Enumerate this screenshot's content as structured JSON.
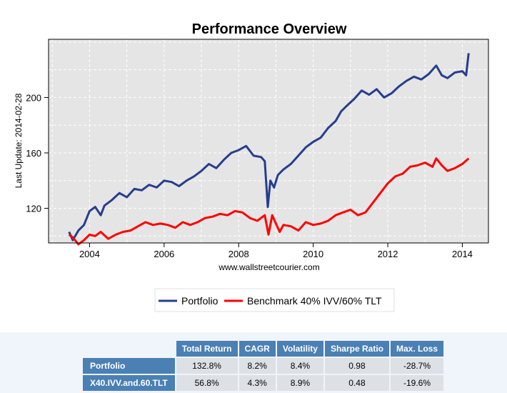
{
  "chart_data": {
    "type": "line",
    "title": "Performance Overview",
    "ylabel": "Last Update: 2014-02-28",
    "xlabel": "www.wallstreetcourier.com",
    "xlim": [
      2002.9,
      2014.7
    ],
    "ylim": [
      95,
      242
    ],
    "x_ticks": [
      2004,
      2006,
      2008,
      2010,
      2012,
      2014
    ],
    "y_ticks": [
      120,
      160,
      200
    ],
    "grid": true,
    "legend_position": "bottom",
    "series": [
      {
        "name": "Portfolio",
        "color": "#253e8d",
        "x": [
          2003.45,
          2003.55,
          2003.7,
          2003.85,
          2004.0,
          2004.15,
          2004.3,
          2004.4,
          2004.6,
          2004.8,
          2005.0,
          2005.2,
          2005.4,
          2005.6,
          2005.8,
          2006.0,
          2006.2,
          2006.4,
          2006.6,
          2006.8,
          2007.0,
          2007.2,
          2007.4,
          2007.6,
          2007.8,
          2008.0,
          2008.2,
          2008.4,
          2008.6,
          2008.7,
          2008.78,
          2008.85,
          2008.95,
          2009.05,
          2009.2,
          2009.4,
          2009.6,
          2009.8,
          2010.0,
          2010.2,
          2010.4,
          2010.6,
          2010.75,
          2010.9,
          2011.1,
          2011.3,
          2011.5,
          2011.7,
          2011.9,
          2012.1,
          2012.3,
          2012.5,
          2012.7,
          2012.9,
          2013.1,
          2013.3,
          2013.45,
          2013.6,
          2013.8,
          2014.0,
          2014.1,
          2014.17
        ],
        "values": [
          103,
          97,
          104,
          108,
          118,
          121,
          115,
          122,
          126,
          131,
          128,
          134,
          133,
          137,
          135,
          140,
          139,
          136,
          140,
          143,
          147,
          152,
          149,
          155,
          160,
          162,
          165,
          158,
          157,
          154,
          121,
          140,
          135,
          144,
          148,
          152,
          158,
          164,
          168,
          171,
          178,
          183,
          190,
          194,
          199,
          205,
          202,
          206,
          200,
          203,
          208,
          212,
          215,
          213,
          217,
          223,
          216,
          214,
          218,
          219,
          216,
          232
        ]
      },
      {
        "name": "Benchmark 40% IVV/60% TLT",
        "color": "#ff0000",
        "x": [
          2003.45,
          2003.55,
          2003.7,
          2003.85,
          2004.0,
          2004.15,
          2004.3,
          2004.5,
          2004.7,
          2004.9,
          2005.1,
          2005.3,
          2005.5,
          2005.7,
          2005.9,
          2006.1,
          2006.3,
          2006.5,
          2006.7,
          2006.9,
          2007.1,
          2007.3,
          2007.5,
          2007.7,
          2007.9,
          2008.1,
          2008.3,
          2008.5,
          2008.7,
          2008.8,
          2008.9,
          2009.0,
          2009.1,
          2009.2,
          2009.4,
          2009.6,
          2009.8,
          2010.0,
          2010.2,
          2010.4,
          2010.6,
          2010.8,
          2011.0,
          2011.2,
          2011.4,
          2011.6,
          2011.8,
          2012.0,
          2012.2,
          2012.4,
          2012.6,
          2012.8,
          2013.0,
          2013.2,
          2013.3,
          2013.45,
          2013.6,
          2013.8,
          2014.0,
          2014.17
        ],
        "values": [
          101,
          99,
          94,
          97,
          101,
          100,
          103,
          98,
          101,
          103,
          104,
          107,
          110,
          108,
          109,
          108,
          106,
          110,
          108,
          110,
          113,
          114,
          116,
          115,
          118,
          117,
          113,
          111,
          115,
          101,
          115,
          109,
          103,
          108,
          107,
          104,
          110,
          108,
          109,
          111,
          115,
          117,
          119,
          115,
          117,
          124,
          131,
          138,
          143,
          145,
          150,
          151,
          153,
          150,
          156,
          151,
          147,
          149,
          152,
          156
        ]
      }
    ]
  },
  "stats_table": {
    "columns": [
      "Total Return",
      "CAGR",
      "Volatility",
      "Sharpe Ratio",
      "Max. Loss"
    ],
    "rows": [
      {
        "label": "Portfolio",
        "cells": [
          "132.8%",
          "8.2%",
          "8.4%",
          "0.98",
          "-28.7%"
        ]
      },
      {
        "label": "X40.IVV.and.60.TLT",
        "cells": [
          "56.8%",
          "4.3%",
          "8.9%",
          "0.48",
          "-19.6%"
        ]
      }
    ]
  }
}
